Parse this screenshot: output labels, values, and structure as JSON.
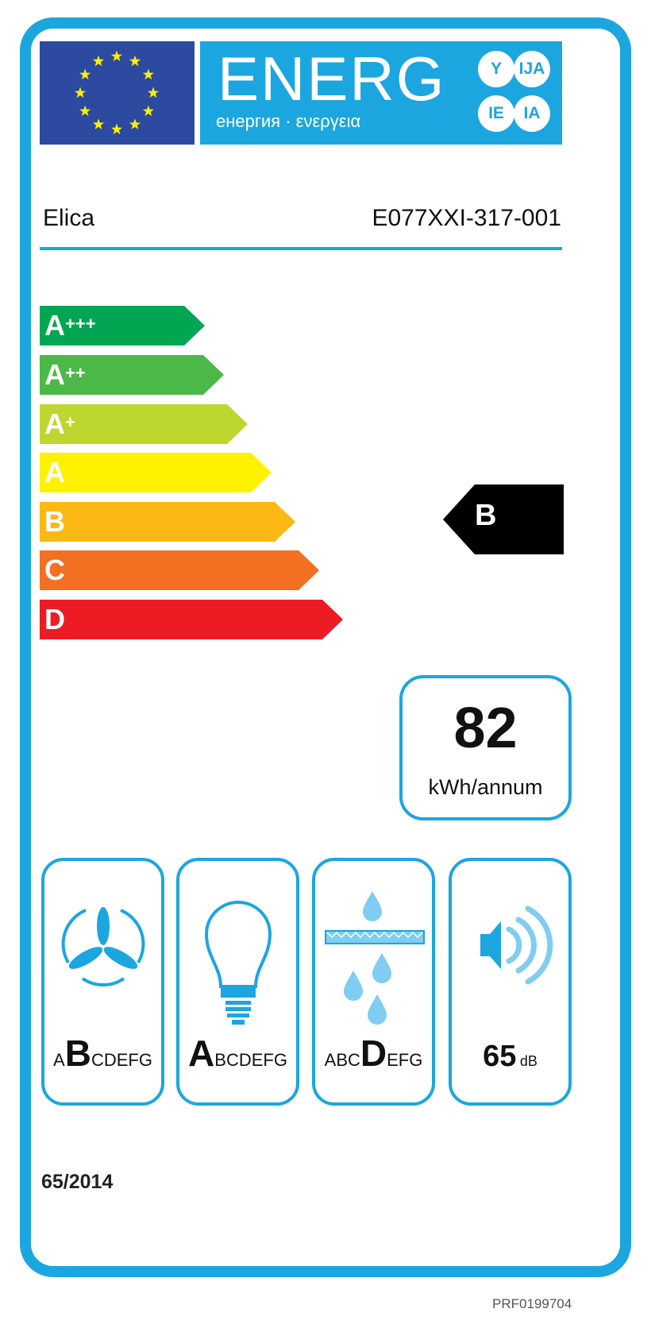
{
  "header": {
    "energy_word": "ENERG",
    "energy_subtitle": "енергия · ενεργεια",
    "language_suffixes": [
      "Y",
      "IJA",
      "IE",
      "IA"
    ]
  },
  "supplier": "Elica",
  "model": "E077XXI-317-001",
  "scale": [
    {
      "label": "A",
      "suffix": "+++",
      "color": "#00a651"
    },
    {
      "label": "A",
      "suffix": "++",
      "color": "#4cb848"
    },
    {
      "label": "A",
      "suffix": "+",
      "color": "#bed630"
    },
    {
      "label": "A",
      "suffix": "",
      "color": "#fff200"
    },
    {
      "label": "B",
      "suffix": "",
      "color": "#fdb913"
    },
    {
      "label": "C",
      "suffix": "",
      "color": "#f36f21"
    },
    {
      "label": "D",
      "suffix": "",
      "color": "#ed1c24"
    }
  ],
  "rating": {
    "class": "B",
    "color": "#000000"
  },
  "consumption": {
    "value": "82",
    "unit": "kWh/annum"
  },
  "pictograms": {
    "fluid_dynamic": {
      "icon": "fan-icon",
      "before": "A",
      "class": "B",
      "after": "CDEFG"
    },
    "lighting": {
      "icon": "light-bulb-icon",
      "before": "",
      "class": "A",
      "after": "BCDEFG"
    },
    "grease_filtering": {
      "icon": "grease-filter-icon",
      "before": "ABC",
      "class": "D",
      "after": "EFG"
    },
    "noise": {
      "icon": "speaker-icon",
      "value": "65",
      "unit": "dB"
    }
  },
  "regulation": "65/2014",
  "reference_code": "PRF0199704",
  "accent_color": "#1ba6e0"
}
